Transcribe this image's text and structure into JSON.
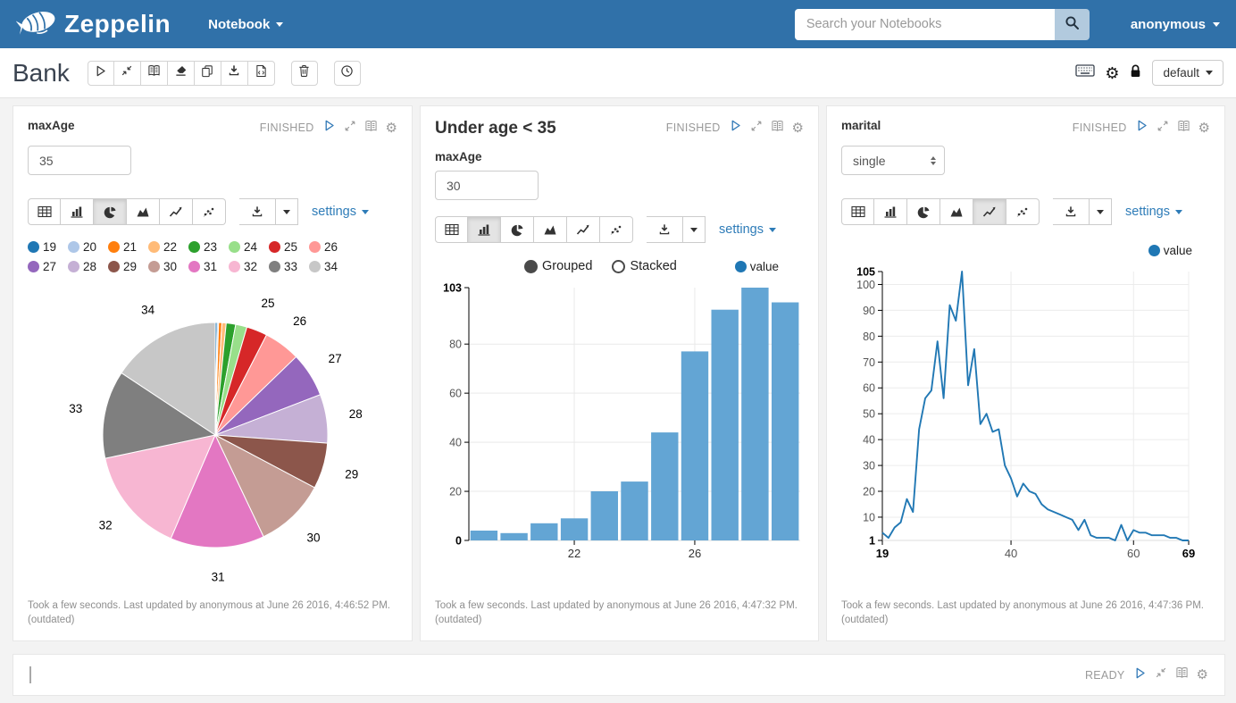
{
  "navbar": {
    "brand": "Zeppelin",
    "menu_notebook": "Notebook",
    "search_placeholder": "Search your Notebooks",
    "username": "anonymous",
    "accent_color": "#3071a9",
    "online_color": "#5cb85c"
  },
  "note": {
    "title": "Bank",
    "view_mode": "default"
  },
  "labels": {
    "settings": "settings",
    "finished": "FINISHED",
    "ready": "READY",
    "grouped": "Grouped",
    "stacked": "Stacked",
    "value": "value",
    "value_dot_color": "#1f77b4",
    "link_color": "#337ab7"
  },
  "paragraphs": {
    "maxage_pie": {
      "form_label": "maxAge",
      "form_value": "35",
      "status": "FINISHED",
      "footer": "Took a few seconds. Last updated by anonymous at June 26 2016, 4:46:52 PM.",
      "footer2": "(outdated)"
    },
    "under_age": {
      "title": "Under age < 35",
      "form_label": "maxAge",
      "form_value": "30",
      "status": "FINISHED",
      "footer": "Took a few seconds. Last updated by anonymous at June 26 2016, 4:47:32 PM.",
      "footer2": "(outdated)"
    },
    "marital": {
      "form_label": "marital",
      "form_value": "single",
      "status": "FINISHED",
      "footer": "Took a few seconds. Last updated by anonymous at June 26 2016, 4:47:36 PM.",
      "footer2": "(outdated)"
    },
    "empty": {
      "status": "READY"
    }
  },
  "chart_data": [
    {
      "type": "pie",
      "title": "",
      "categories": [
        "19",
        "20",
        "21",
        "22",
        "23",
        "24",
        "25",
        "26",
        "27",
        "28",
        "29",
        "30",
        "31",
        "32",
        "33",
        "34"
      ],
      "values": [
        4,
        3,
        7,
        9,
        20,
        24,
        44,
        77,
        94,
        103,
        97,
        150,
        199,
        224,
        186,
        231
      ],
      "colors": [
        "#1f77b4",
        "#aec7e8",
        "#ff7f0e",
        "#ffbb78",
        "#2ca02c",
        "#98df8a",
        "#d62728",
        "#ff9896",
        "#9467bd",
        "#c5b0d5",
        "#8c564b",
        "#c49c94",
        "#e377c2",
        "#f7b6d2",
        "#7f7f7f",
        "#c7c7c7"
      ],
      "legend_position": "top",
      "label_min_value": 30
    },
    {
      "type": "bar",
      "categories": [
        "19",
        "20",
        "21",
        "22",
        "23",
        "24",
        "25",
        "26",
        "27",
        "28",
        "29"
      ],
      "series": [
        {
          "name": "value",
          "values": [
            4,
            3,
            7,
            9,
            20,
            24,
            44,
            77,
            94,
            103,
            97
          ]
        }
      ],
      "x_ticks_shown": [
        "22",
        "26"
      ],
      "y_ticks": [
        0,
        20,
        40,
        60,
        80,
        103
      ],
      "ylim": [
        0,
        103
      ],
      "bar_color": "#63a5d4",
      "grid": true,
      "modes": [
        "Grouped",
        "Stacked"
      ],
      "selected_mode": "Grouped",
      "legend": [
        "value"
      ]
    },
    {
      "type": "line",
      "x": [
        19,
        20,
        21,
        22,
        23,
        24,
        25,
        26,
        27,
        28,
        29,
        30,
        31,
        32,
        33,
        34,
        35,
        36,
        37,
        38,
        39,
        40,
        41,
        42,
        43,
        44,
        45,
        46,
        47,
        48,
        49,
        50,
        51,
        52,
        53,
        54,
        55,
        56,
        57,
        58,
        59,
        60,
        61,
        62,
        63,
        64,
        65,
        66,
        67,
        68,
        69
      ],
      "series": [
        {
          "name": "value",
          "values": [
            4,
            2,
            6,
            8,
            17,
            12,
            44,
            56,
            59,
            78,
            56,
            92,
            86,
            105,
            61,
            75,
            46,
            50,
            43,
            44,
            30,
            25,
            18,
            23,
            20,
            19,
            15,
            13,
            12,
            11,
            10,
            9,
            5,
            9,
            3,
            2,
            2,
            2,
            1,
            7,
            1,
            5,
            4,
            4,
            3,
            3,
            3,
            2,
            2,
            1,
            1
          ]
        }
      ],
      "x_ticks": [
        19,
        40,
        60,
        69
      ],
      "y_ticks": [
        1,
        10,
        20,
        30,
        40,
        50,
        60,
        70,
        80,
        90,
        100,
        105
      ],
      "xlim": [
        19,
        69
      ],
      "ylim": [
        1,
        105
      ],
      "line_color": "#2178b4",
      "grid": true,
      "legend": [
        "value"
      ]
    }
  ]
}
